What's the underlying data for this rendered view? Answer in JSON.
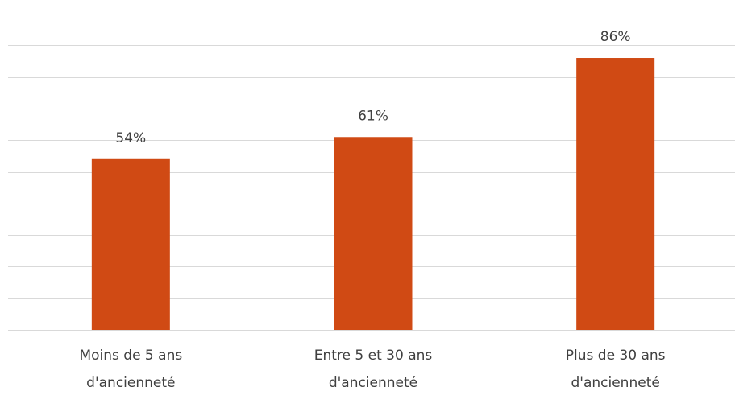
{
  "chart_data": {
    "type": "bar",
    "categories": [
      [
        "Moins de 5 ans",
        "d'ancienneté"
      ],
      [
        "Entre 5 et 30 ans",
        "d'ancienneté"
      ],
      [
        "Plus de 30 ans",
        "d'ancienneté"
      ]
    ],
    "values": [
      54,
      61,
      86
    ],
    "data_labels": [
      "54%",
      "61%",
      "86%"
    ],
    "title": "",
    "xlabel": "",
    "ylabel": "",
    "ylim": [
      0,
      100
    ],
    "grid": true,
    "legend": "none",
    "colors": {
      "bar": "#D04A14",
      "grid": "#D9D9D9",
      "text": "#404040"
    }
  }
}
